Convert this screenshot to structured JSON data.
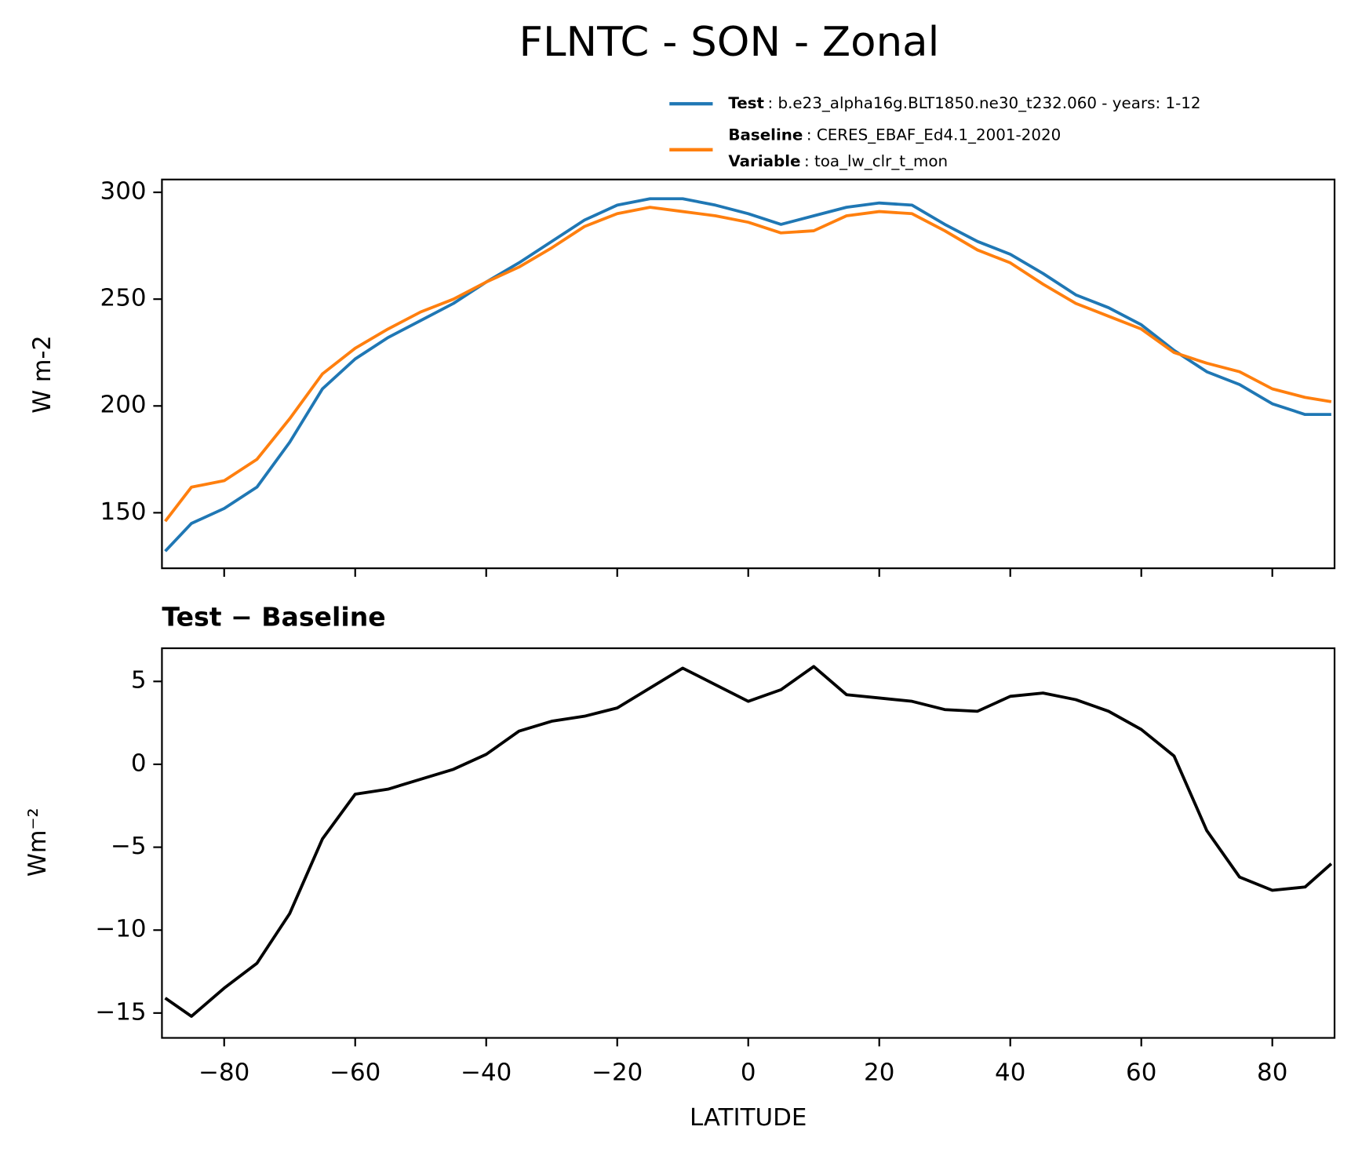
{
  "chart_data": [
    {
      "type": "line",
      "title": "FLNTC - SON - Zonal",
      "ylabel": "W m-2",
      "x": [
        -89,
        -85,
        -80,
        -75,
        -70,
        -65,
        -60,
        -55,
        -50,
        -45,
        -40,
        -35,
        -30,
        -25,
        -20,
        -15,
        -10,
        -5,
        0,
        5,
        10,
        15,
        20,
        25,
        30,
        35,
        40,
        45,
        50,
        55,
        60,
        65,
        70,
        75,
        80,
        85,
        89
      ],
      "series": [
        {
          "name": "Test",
          "description": ": b.e23_alpha16g.BLT1850.ne30_t232.060 - years: 1-12",
          "color": "#1f77b4",
          "values": [
            132,
            145,
            152,
            162,
            183,
            208,
            222,
            232,
            240,
            248,
            258,
            267,
            277,
            287,
            294,
            297,
            297,
            294,
            290,
            285,
            289,
            293,
            295,
            294,
            285,
            277,
            271,
            262,
            252,
            246,
            238,
            226,
            216,
            210,
            201,
            196,
            196
          ]
        },
        {
          "name": "Baseline",
          "description": ": CERES_EBAF_Ed4.1_2001-2020",
          "variable_name": "Variable",
          "variable": ": toa_lw_clr_t_mon",
          "color": "#ff7f0e",
          "values": [
            146,
            162,
            165,
            175,
            194,
            215,
            227,
            236,
            244,
            250,
            258,
            265,
            274,
            284,
            290,
            293,
            291,
            289,
            286,
            281,
            282,
            289,
            291,
            290,
            282,
            273,
            267,
            257,
            248,
            242,
            236,
            225,
            220,
            216,
            208,
            204,
            202
          ]
        }
      ],
      "xlim": [
        -89.5,
        89.5
      ],
      "ylim": [
        124,
        306
      ],
      "xticks": [
        -80,
        -60,
        -40,
        -20,
        0,
        20,
        40,
        60,
        80
      ],
      "show_xtick_labels": false,
      "yticks": [
        150,
        200,
        250,
        300
      ]
    },
    {
      "type": "line",
      "title": "Test − Baseline",
      "ylabel": "Wm⁻²",
      "xlabel": "LATITUDE",
      "x": [
        -89,
        -85,
        -80,
        -75,
        -70,
        -65,
        -60,
        -55,
        -50,
        -45,
        -40,
        -35,
        -30,
        -25,
        -20,
        -15,
        -10,
        -5,
        0,
        5,
        10,
        15,
        20,
        25,
        30,
        35,
        40,
        45,
        50,
        55,
        60,
        65,
        70,
        75,
        80,
        85,
        89
      ],
      "series": [
        {
          "color": "#000000",
          "values": [
            -14.1,
            -15.2,
            -13.5,
            -12,
            -9,
            -4.5,
            -1.8,
            -1.5,
            -0.9,
            -0.3,
            0.6,
            2,
            2.6,
            2.9,
            3.4,
            4.6,
            5.8,
            4.8,
            3.8,
            4.5,
            5.9,
            4.2,
            4.0,
            3.8,
            3.3,
            3.2,
            4.1,
            4.3,
            3.9,
            3.2,
            2.1,
            0.5,
            -4,
            -6.8,
            -7.6,
            -7.4,
            -6
          ]
        }
      ],
      "xlim": [
        -89.5,
        89.5
      ],
      "ylim": [
        -16.5,
        7
      ],
      "xticks": [
        {
          "value": -80,
          "label": "−80"
        },
        {
          "value": -60,
          "label": "−60"
        },
        {
          "value": -40,
          "label": "−40"
        },
        {
          "value": -20,
          "label": "−20"
        },
        0,
        20,
        40,
        60,
        80
      ],
      "show_xtick_labels": true,
      "yticks": [
        {
          "value": -15,
          "label": "−15"
        },
        {
          "value": -10,
          "label": "−10"
        },
        {
          "value": -5,
          "label": "−5"
        },
        0,
        5
      ]
    }
  ]
}
